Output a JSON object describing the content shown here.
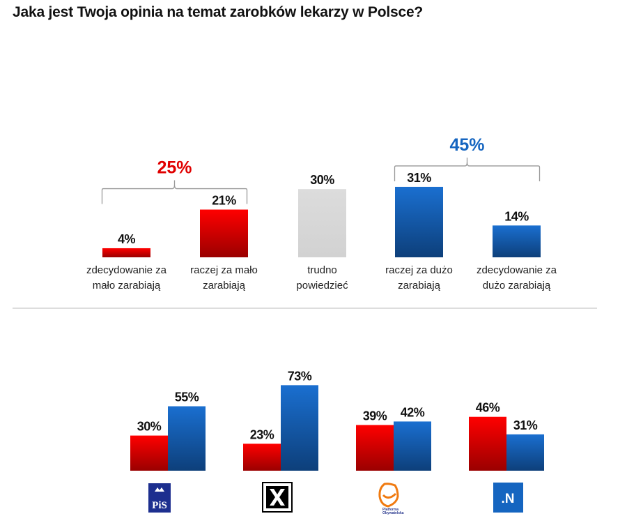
{
  "title": "Jaka jest Twoja opinia na temat zarobków lekarzy w Polsce?",
  "colors": {
    "red": "#e00000",
    "blue": "#1565c0",
    "gray": "#d9d9d9",
    "bracket": "#999999"
  },
  "chart_data": [
    {
      "type": "bar",
      "categories": [
        [
          "zdecydowanie za",
          "mało zarabiają"
        ],
        [
          "raczej za mało",
          "zarabiają"
        ],
        [
          "trudno",
          "powiedzieć"
        ],
        [
          "raczej za dużo",
          "zarabiają"
        ],
        [
          "zdecydowanie za",
          "dużo zarabiają"
        ]
      ],
      "values": [
        4,
        21,
        30,
        31,
        14
      ],
      "value_labels": [
        "4%",
        "21%",
        "30%",
        "31%",
        "14%"
      ],
      "bar_colors": [
        "red",
        "red",
        "gray",
        "blue",
        "blue"
      ],
      "groups": [
        {
          "label": "25%",
          "color": "red",
          "members": [
            0,
            1
          ]
        },
        {
          "label": "45%",
          "color": "blue",
          "members": [
            3,
            4
          ]
        }
      ]
    },
    {
      "type": "bar",
      "categories": [
        "PiS",
        "Kukiz'15",
        "Platforma Obywatelska",
        ".N"
      ],
      "series": [
        {
          "color": "red",
          "values": [
            30,
            23,
            39,
            46
          ],
          "value_labels": [
            "30%",
            "23%",
            "39%",
            "46%"
          ]
        },
        {
          "color": "blue",
          "values": [
            55,
            73,
            42,
            31
          ],
          "value_labels": [
            "55%",
            "73%",
            "42%",
            "31%"
          ]
        }
      ]
    }
  ],
  "logos": {
    "pis": "PiS",
    "kukiz": "X",
    "po": "Platforma Obywatelska",
    "n": ".N"
  }
}
